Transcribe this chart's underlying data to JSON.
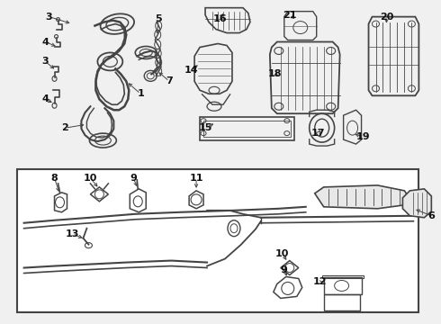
{
  "bg_color": "#f0f0f0",
  "line_color": "#444444",
  "text_color": "#111111",
  "white": "#ffffff",
  "figsize": [
    4.9,
    3.6
  ],
  "dpi": 100
}
